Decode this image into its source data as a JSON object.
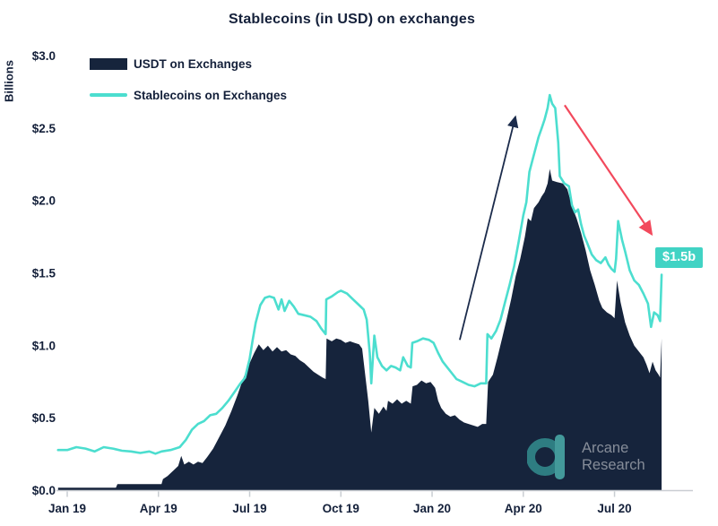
{
  "title": "Stablecoins (in USD) on exchanges",
  "watermark": {
    "line1": "Arcane",
    "line2": "Research"
  },
  "chart_data": {
    "type": "area",
    "title": "Stablecoins (in USD) on exchanges",
    "xlabel": "",
    "ylabel": "Billions",
    "ylim": [
      0.0,
      3.0
    ],
    "x_unit": "months since Jan 2019",
    "grid": false,
    "legend_position": "top-left inside plot",
    "x_ticks": [
      {
        "label": "Jan 19",
        "m": 0
      },
      {
        "label": "Apr 19",
        "m": 3
      },
      {
        "label": "Jul 19",
        "m": 6
      },
      {
        "label": "Oct 19",
        "m": 9
      },
      {
        "label": "Jan 20",
        "m": 12
      },
      {
        "label": "Apr 20",
        "m": 15
      },
      {
        "label": "Jul 20",
        "m": 18
      }
    ],
    "y_ticks": [
      {
        "label": "$0.0",
        "v": 0.0
      },
      {
        "label": "$0.5",
        "v": 0.5
      },
      {
        "label": "$1.0",
        "v": 1.0
      },
      {
        "label": "$1.5",
        "v": 1.5
      },
      {
        "label": "$2.0",
        "v": 2.0
      },
      {
        "label": "$2.5",
        "v": 2.5
      },
      {
        "label": "$3.0",
        "v": 3.0
      }
    ],
    "series": [
      {
        "name": "USDT on Exchanges",
        "type": "area",
        "color": "#16243c",
        "points": [
          [
            -0.3,
            0.02
          ],
          [
            1.6,
            0.02
          ],
          [
            1.65,
            0.045
          ],
          [
            3.1,
            0.045
          ],
          [
            3.15,
            0.08
          ],
          [
            3.3,
            0.1
          ],
          [
            3.5,
            0.14
          ],
          [
            3.65,
            0.17
          ],
          [
            3.75,
            0.24
          ],
          [
            3.85,
            0.18
          ],
          [
            4.0,
            0.2
          ],
          [
            4.15,
            0.18
          ],
          [
            4.3,
            0.2
          ],
          [
            4.45,
            0.19
          ],
          [
            4.6,
            0.23
          ],
          [
            4.8,
            0.29
          ],
          [
            5.0,
            0.37
          ],
          [
            5.2,
            0.45
          ],
          [
            5.4,
            0.55
          ],
          [
            5.6,
            0.66
          ],
          [
            5.8,
            0.78
          ],
          [
            6.0,
            0.88
          ],
          [
            6.15,
            0.95
          ],
          [
            6.3,
            1.01
          ],
          [
            6.45,
            0.97
          ],
          [
            6.6,
            1.0
          ],
          [
            6.75,
            0.96
          ],
          [
            6.9,
            0.99
          ],
          [
            7.05,
            0.96
          ],
          [
            7.2,
            0.97
          ],
          [
            7.35,
            0.94
          ],
          [
            7.5,
            0.93
          ],
          [
            7.65,
            0.9
          ],
          [
            7.8,
            0.88
          ],
          [
            7.95,
            0.85
          ],
          [
            8.1,
            0.82
          ],
          [
            8.25,
            0.8
          ],
          [
            8.4,
            0.78
          ],
          [
            8.5,
            0.77
          ],
          [
            8.53,
            1.05
          ],
          [
            8.7,
            1.03
          ],
          [
            8.85,
            1.05
          ],
          [
            9.0,
            1.04
          ],
          [
            9.15,
            1.02
          ],
          [
            9.3,
            1.03
          ],
          [
            9.45,
            1.02
          ],
          [
            9.6,
            1.01
          ],
          [
            9.7,
            0.98
          ],
          [
            9.8,
            0.8
          ],
          [
            9.9,
            0.62
          ],
          [
            10.0,
            0.4
          ],
          [
            10.1,
            0.57
          ],
          [
            10.25,
            0.53
          ],
          [
            10.4,
            0.58
          ],
          [
            10.5,
            0.55
          ],
          [
            10.55,
            0.62
          ],
          [
            10.7,
            0.6
          ],
          [
            10.85,
            0.63
          ],
          [
            11.0,
            0.6
          ],
          [
            11.15,
            0.62
          ],
          [
            11.3,
            0.6
          ],
          [
            11.36,
            0.72
          ],
          [
            11.5,
            0.73
          ],
          [
            11.65,
            0.76
          ],
          [
            11.8,
            0.74
          ],
          [
            11.95,
            0.75
          ],
          [
            12.1,
            0.71
          ],
          [
            12.2,
            0.62
          ],
          [
            12.3,
            0.57
          ],
          [
            12.45,
            0.53
          ],
          [
            12.6,
            0.51
          ],
          [
            12.75,
            0.52
          ],
          [
            12.9,
            0.49
          ],
          [
            13.05,
            0.47
          ],
          [
            13.2,
            0.46
          ],
          [
            13.35,
            0.45
          ],
          [
            13.5,
            0.44
          ],
          [
            13.65,
            0.46
          ],
          [
            13.78,
            0.46
          ],
          [
            13.84,
            0.75
          ],
          [
            14.0,
            0.8
          ],
          [
            14.15,
            0.92
          ],
          [
            14.3,
            1.05
          ],
          [
            14.45,
            1.18
          ],
          [
            14.6,
            1.32
          ],
          [
            14.75,
            1.48
          ],
          [
            14.9,
            1.6
          ],
          [
            15.05,
            1.75
          ],
          [
            15.15,
            1.88
          ],
          [
            15.25,
            1.86
          ],
          [
            15.35,
            1.95
          ],
          [
            15.5,
            1.99
          ],
          [
            15.6,
            2.03
          ],
          [
            15.7,
            2.06
          ],
          [
            15.8,
            2.12
          ],
          [
            15.87,
            2.22
          ],
          [
            15.95,
            2.14
          ],
          [
            16.1,
            2.13
          ],
          [
            16.3,
            2.12
          ],
          [
            16.45,
            2.08
          ],
          [
            16.6,
            1.96
          ],
          [
            16.75,
            1.88
          ],
          [
            16.9,
            1.78
          ],
          [
            17.05,
            1.66
          ],
          [
            17.2,
            1.52
          ],
          [
            17.35,
            1.42
          ],
          [
            17.5,
            1.31
          ],
          [
            17.6,
            1.26
          ],
          [
            17.75,
            1.23
          ],
          [
            17.9,
            1.21
          ],
          [
            18.0,
            1.19
          ],
          [
            18.08,
            1.45
          ],
          [
            18.2,
            1.3
          ],
          [
            18.35,
            1.16
          ],
          [
            18.5,
            1.07
          ],
          [
            18.65,
            1.0
          ],
          [
            18.8,
            0.96
          ],
          [
            18.95,
            0.92
          ],
          [
            19.05,
            0.87
          ],
          [
            19.15,
            0.81
          ],
          [
            19.25,
            0.89
          ],
          [
            19.35,
            0.83
          ],
          [
            19.45,
            0.8
          ],
          [
            19.5,
            0.78
          ],
          [
            19.55,
            1.05
          ]
        ]
      },
      {
        "name": "Stablecoins on Exchanges",
        "type": "line",
        "color": "#4cdecf",
        "points": [
          [
            -0.3,
            0.28
          ],
          [
            0,
            0.28
          ],
          [
            0.3,
            0.3
          ],
          [
            0.6,
            0.29
          ],
          [
            0.9,
            0.27
          ],
          [
            1.2,
            0.3
          ],
          [
            1.5,
            0.29
          ],
          [
            1.8,
            0.275
          ],
          [
            2.1,
            0.27
          ],
          [
            2.4,
            0.26
          ],
          [
            2.7,
            0.27
          ],
          [
            2.9,
            0.255
          ],
          [
            3.1,
            0.27
          ],
          [
            3.4,
            0.28
          ],
          [
            3.7,
            0.3
          ],
          [
            3.9,
            0.35
          ],
          [
            4.1,
            0.42
          ],
          [
            4.3,
            0.46
          ],
          [
            4.5,
            0.48
          ],
          [
            4.7,
            0.52
          ],
          [
            4.9,
            0.53
          ],
          [
            5.1,
            0.57
          ],
          [
            5.3,
            0.62
          ],
          [
            5.5,
            0.68
          ],
          [
            5.7,
            0.74
          ],
          [
            5.85,
            0.78
          ],
          [
            6.0,
            0.91
          ],
          [
            6.1,
            1.04
          ],
          [
            6.2,
            1.16
          ],
          [
            6.35,
            1.28
          ],
          [
            6.5,
            1.33
          ],
          [
            6.65,
            1.34
          ],
          [
            6.8,
            1.33
          ],
          [
            6.95,
            1.25
          ],
          [
            7.05,
            1.32
          ],
          [
            7.15,
            1.24
          ],
          [
            7.3,
            1.31
          ],
          [
            7.45,
            1.27
          ],
          [
            7.6,
            1.22
          ],
          [
            7.8,
            1.21
          ],
          [
            8.0,
            1.2
          ],
          [
            8.2,
            1.17
          ],
          [
            8.35,
            1.12
          ],
          [
            8.5,
            1.08
          ],
          [
            8.52,
            1.32
          ],
          [
            8.7,
            1.34
          ],
          [
            8.9,
            1.37
          ],
          [
            9.0,
            1.38
          ],
          [
            9.2,
            1.36
          ],
          [
            9.4,
            1.32
          ],
          [
            9.6,
            1.28
          ],
          [
            9.75,
            1.25
          ],
          [
            9.85,
            1.18
          ],
          [
            9.95,
            0.95
          ],
          [
            10.0,
            0.74
          ],
          [
            10.1,
            1.07
          ],
          [
            10.2,
            0.92
          ],
          [
            10.35,
            0.86
          ],
          [
            10.5,
            0.83
          ],
          [
            10.65,
            0.86
          ],
          [
            10.8,
            0.85
          ],
          [
            10.95,
            0.83
          ],
          [
            11.05,
            0.92
          ],
          [
            11.2,
            0.86
          ],
          [
            11.3,
            0.85
          ],
          [
            11.35,
            1.02
          ],
          [
            11.5,
            1.03
          ],
          [
            11.7,
            1.05
          ],
          [
            11.9,
            1.04
          ],
          [
            12.05,
            1.02
          ],
          [
            12.2,
            0.95
          ],
          [
            12.35,
            0.89
          ],
          [
            12.5,
            0.85
          ],
          [
            12.65,
            0.81
          ],
          [
            12.8,
            0.77
          ],
          [
            13.0,
            0.75
          ],
          [
            13.2,
            0.73
          ],
          [
            13.4,
            0.72
          ],
          [
            13.6,
            0.74
          ],
          [
            13.78,
            0.74
          ],
          [
            13.82,
            1.08
          ],
          [
            13.95,
            1.05
          ],
          [
            14.1,
            1.1
          ],
          [
            14.25,
            1.18
          ],
          [
            14.4,
            1.3
          ],
          [
            14.55,
            1.42
          ],
          [
            14.7,
            1.55
          ],
          [
            14.85,
            1.72
          ],
          [
            15.0,
            1.9
          ],
          [
            15.1,
            1.99
          ],
          [
            15.2,
            2.2
          ],
          [
            15.3,
            2.28
          ],
          [
            15.4,
            2.36
          ],
          [
            15.5,
            2.44
          ],
          [
            15.6,
            2.5
          ],
          [
            15.7,
            2.56
          ],
          [
            15.8,
            2.64
          ],
          [
            15.87,
            2.73
          ],
          [
            15.95,
            2.67
          ],
          [
            16.05,
            2.64
          ],
          [
            16.15,
            2.4
          ],
          [
            16.2,
            2.17
          ],
          [
            16.35,
            2.12
          ],
          [
            16.5,
            2.1
          ],
          [
            16.6,
            1.97
          ],
          [
            16.7,
            1.92
          ],
          [
            16.8,
            1.94
          ],
          [
            16.9,
            1.84
          ],
          [
            17.0,
            1.76
          ],
          [
            17.1,
            1.71
          ],
          [
            17.25,
            1.63
          ],
          [
            17.4,
            1.59
          ],
          [
            17.55,
            1.57
          ],
          [
            17.7,
            1.61
          ],
          [
            17.8,
            1.56
          ],
          [
            17.9,
            1.53
          ],
          [
            18.0,
            1.51
          ],
          [
            18.05,
            1.6
          ],
          [
            18.12,
            1.86
          ],
          [
            18.25,
            1.73
          ],
          [
            18.35,
            1.65
          ],
          [
            18.5,
            1.52
          ],
          [
            18.65,
            1.45
          ],
          [
            18.8,
            1.42
          ],
          [
            18.95,
            1.36
          ],
          [
            19.1,
            1.29
          ],
          [
            19.2,
            1.13
          ],
          [
            19.3,
            1.23
          ],
          [
            19.42,
            1.21
          ],
          [
            19.5,
            1.17
          ],
          [
            19.55,
            1.49
          ]
        ]
      }
    ],
    "annotations": {
      "up_arrow": {
        "from": [
          12.91,
          1.04
        ],
        "to": [
          14.74,
          2.58
        ],
        "color": "#1b2b4b"
      },
      "down_arrow": {
        "from": [
          16.36,
          2.66
        ],
        "to": [
          19.22,
          1.77
        ],
        "color": "#f2495c"
      },
      "badge": {
        "label": "$1.5b",
        "m": 19.35,
        "v": 1.6,
        "color": "#41d3c4",
        "text_color": "#ffffff"
      }
    },
    "axis": {
      "line_color": "#c9cdd2",
      "label_color": "#14203a"
    },
    "watermark_colors": {
      "ring": "#2e7d82",
      "bar": "#43999a",
      "text": "#868d99"
    }
  }
}
